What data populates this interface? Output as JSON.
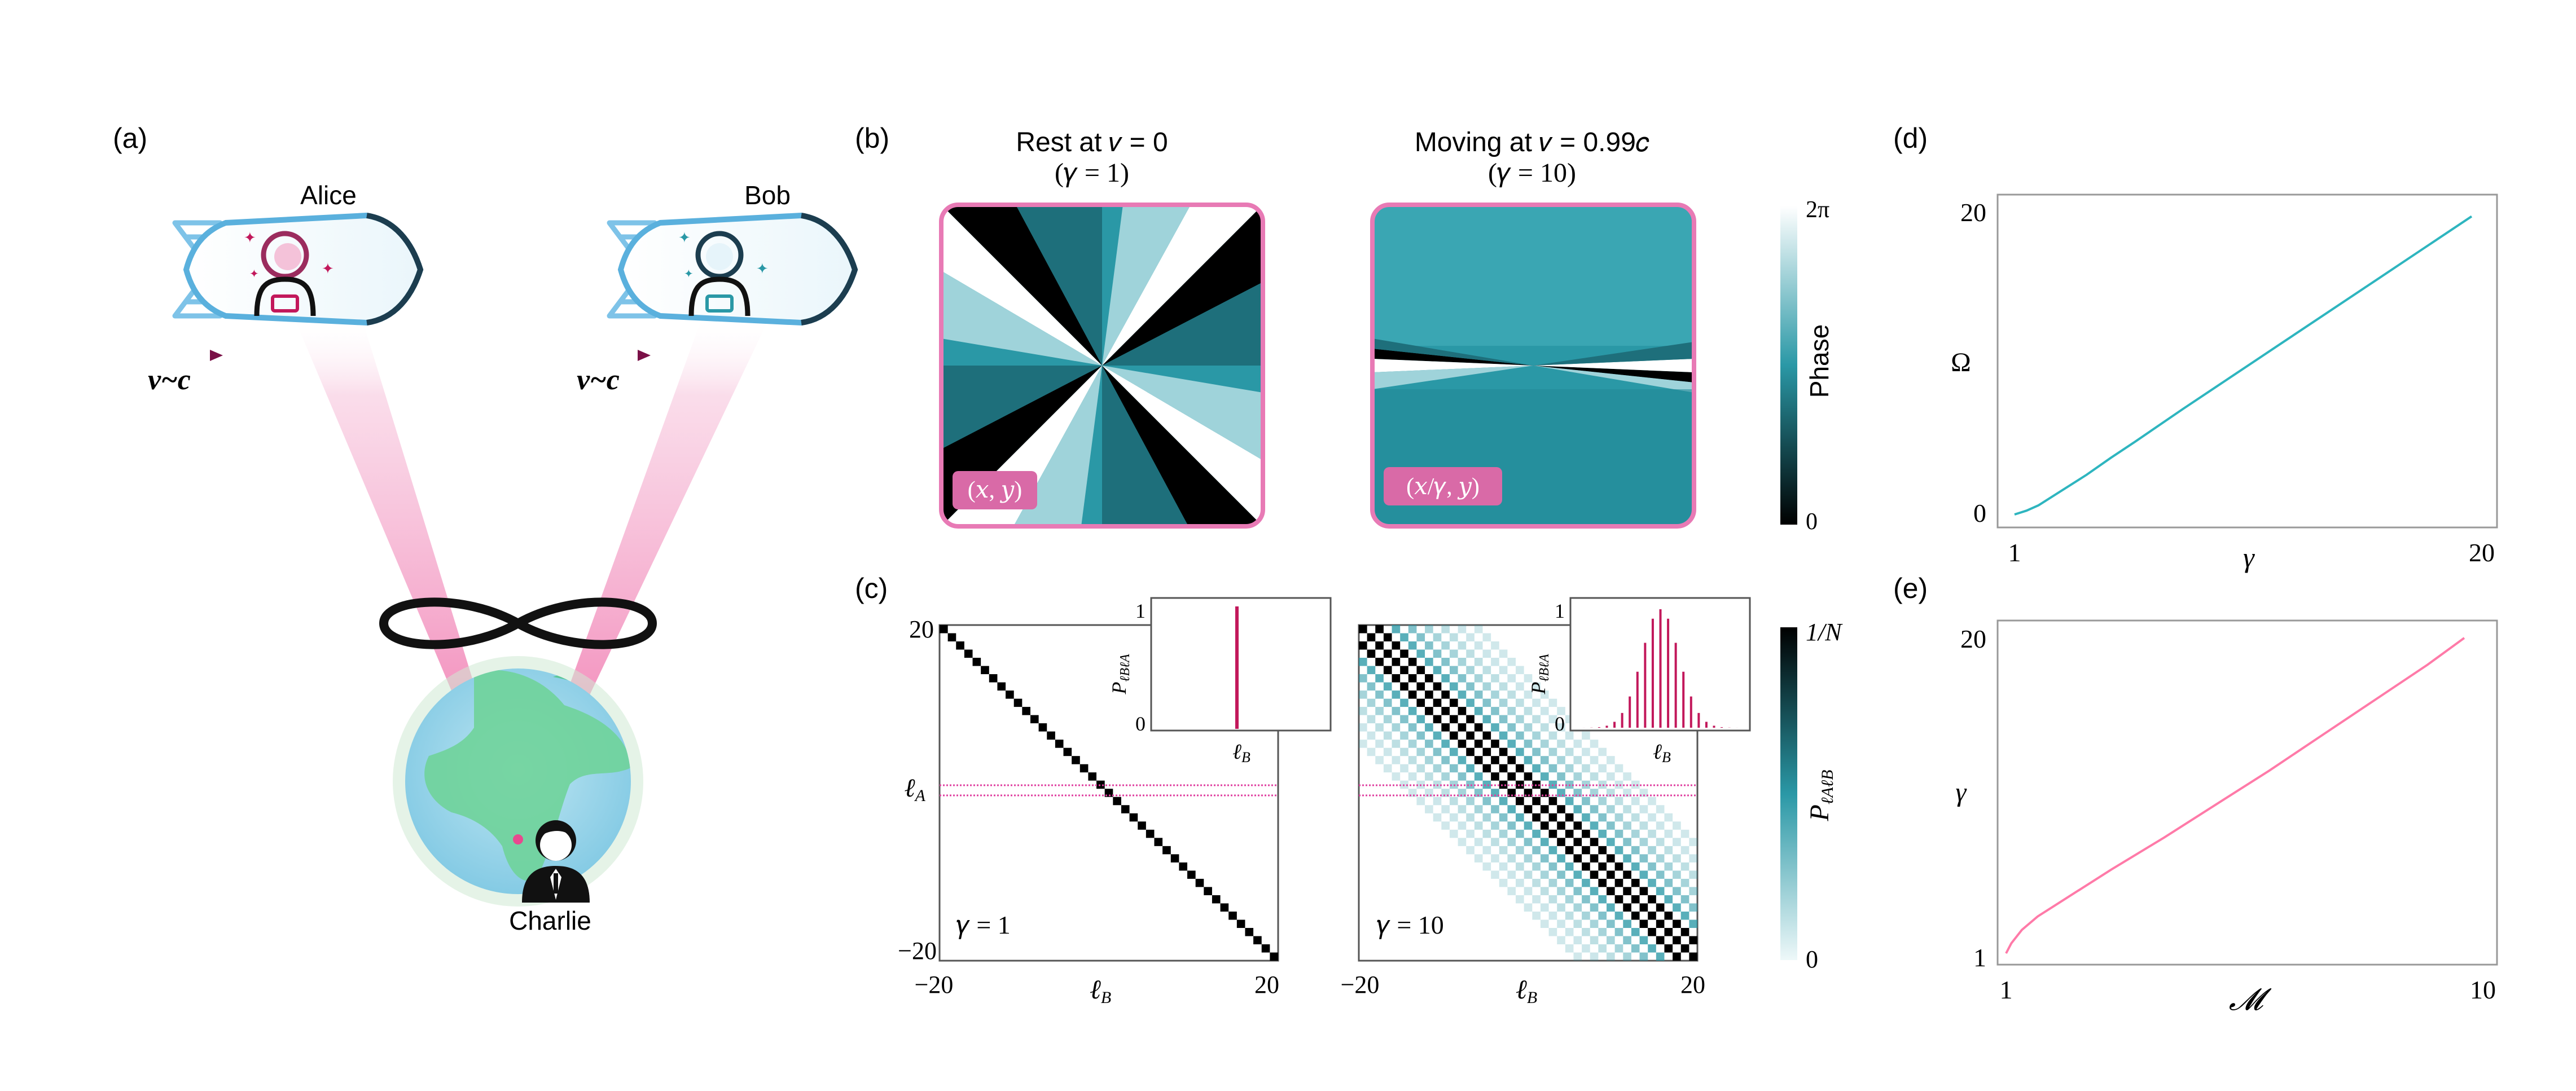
{
  "panel_labels": {
    "a": "(a)",
    "b": "(b)",
    "c": "(c)",
    "d": "(d)",
    "e": "(e)"
  },
  "panel_a": {
    "alice_label": "Alice",
    "bob_label": "Bob",
    "charlie_label": "Charlie",
    "velocity_label": "v~c",
    "colors": {
      "magenta": "#c2185b",
      "pink_beam": "#f48fb1",
      "ship_outline_light": "#7ec3e8",
      "ship_outline_dark": "#1c3d4f",
      "globe_blue": "#8ecfe8",
      "globe_green": "#5fd08a"
    }
  },
  "panel_b": {
    "left_title_line1": "Rest at 𝑣 = 0",
    "left_title_line2": "(𝛾 = 1)",
    "right_title_line1": "Moving at 𝑣 = 0.99𝑐",
    "right_title_line2": "(𝛾 = 10)",
    "left_tag": "(𝑥, 𝑦)",
    "right_tag": "(𝑥/𝛾, 𝑦)",
    "colorbar_label": "Phase",
    "colorbar_top": "2π",
    "colorbar_bottom": "0",
    "colors": {
      "frame": "#e87ab5",
      "tag_bg": "#d96aa7",
      "teal": "#2a98a6",
      "dark": "#000000",
      "light": "#ffffff"
    }
  },
  "panel_c": {
    "left_gamma": "𝛾 = 1",
    "right_gamma": "𝛾 = 10",
    "y_tick_top": "20",
    "y_tick_mid": "ℓ",
    "y_tick_mid_sub": "A",
    "y_tick_bottom": "−20",
    "x_tick_left": "−20",
    "x_tick_right": "20",
    "x_label": "ℓ",
    "x_label_sub": "B",
    "inset_y_label": "P",
    "inset_y_label_sub": "ℓBℓA",
    "inset_x_label": "ℓ",
    "inset_x_label_sub": "B",
    "inset_tick_1": "1",
    "inset_tick_0": "0",
    "colorbar_label": "P",
    "colorbar_label_sub": "ℓAℓB",
    "colorbar_top": "1/N",
    "colorbar_bottom": "0"
  },
  "chart_data": [
    {
      "type": "line",
      "panel": "(d)",
      "xlabel": "γ",
      "ylabel": "Ω",
      "xticks": [
        "1",
        "20"
      ],
      "yticks": [
        "0",
        "20"
      ],
      "xlim": [
        1,
        20
      ],
      "ylim": [
        0,
        20
      ],
      "series": [
        {
          "color": "#2eb5bf",
          "x": [
            1,
            1.5,
            2,
            3,
            4,
            5,
            6,
            8,
            10,
            12,
            14,
            16,
            18,
            20
          ],
          "y": [
            0,
            0.25,
            0.6,
            1.6,
            2.6,
            3.7,
            4.75,
            6.9,
            9.0,
            11.1,
            13.2,
            15.3,
            17.4,
            19.5
          ]
        }
      ]
    },
    {
      "type": "line",
      "panel": "(e)",
      "xlabel": "𝓜",
      "ylabel": "γ",
      "xticks": [
        "1",
        "10"
      ],
      "yticks": [
        "1",
        "20"
      ],
      "xlim": [
        1,
        10
      ],
      "ylim": [
        1,
        20
      ],
      "series": [
        {
          "color": "#ff7aa8",
          "x": [
            1,
            1.1,
            1.3,
            1.6,
            2,
            3,
            4,
            5,
            6,
            7,
            8,
            9,
            9.7
          ],
          "y": [
            1,
            1.6,
            2.4,
            3.2,
            4.0,
            6.0,
            7.9,
            9.9,
            11.9,
            14.0,
            16.1,
            18.2,
            19.8
          ]
        }
      ]
    }
  ]
}
